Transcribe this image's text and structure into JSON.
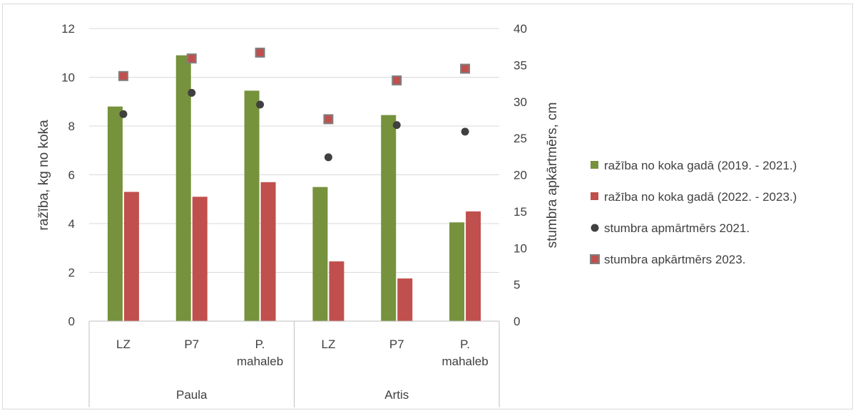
{
  "chart_data": {
    "type": "bar",
    "title": "",
    "ylabel": "ražība, kg no koka",
    "y2label": "stumbra apkārtmērs, cm",
    "ylim": [
      0,
      12
    ],
    "y_ticks": [
      "0",
      "2",
      "4",
      "6",
      "8",
      "10",
      "12"
    ],
    "y2lim": [
      0,
      40
    ],
    "y2_ticks": [
      "0",
      "5",
      "10",
      "15",
      "20",
      "25",
      "30",
      "35",
      "40"
    ],
    "categories": [
      {
        "label": "LZ",
        "group": "Paula"
      },
      {
        "label": "P7",
        "group": "Paula"
      },
      {
        "label": "P. mahaleb",
        "group": "Paula"
      },
      {
        "label": "LZ",
        "group": "Artis"
      },
      {
        "label": "P7",
        "group": "Artis"
      },
      {
        "label": "P. mahaleb",
        "group": "Artis"
      }
    ],
    "groups": [
      "Paula",
      "Artis"
    ],
    "series": [
      {
        "name": "ražība no koka gadā (2019. - 2021.)",
        "kind": "bar",
        "axis": "left",
        "color": "#76923c",
        "values": [
          8.8,
          10.9,
          9.45,
          5.5,
          8.45,
          4.05
        ]
      },
      {
        "name": "ražība no koka gadā (2022. - 2023.)",
        "kind": "bar",
        "axis": "left",
        "color": "#c0504d",
        "values": [
          5.3,
          5.1,
          5.7,
          2.45,
          1.75,
          4.5
        ]
      },
      {
        "name": "stumbra apmārtmērs 2021.",
        "kind": "marker-circle",
        "axis": "right",
        "color": "#404040",
        "values": [
          28.3,
          31.2,
          29.6,
          22.4,
          26.8,
          25.9
        ]
      },
      {
        "name": "stumbra apkārtmērs 2023.",
        "kind": "marker-square",
        "axis": "right",
        "color": "#c0504d",
        "values": [
          33.5,
          35.9,
          36.7,
          27.6,
          32.9,
          34.5
        ]
      }
    ],
    "legend_position": "right",
    "grid": true
  }
}
